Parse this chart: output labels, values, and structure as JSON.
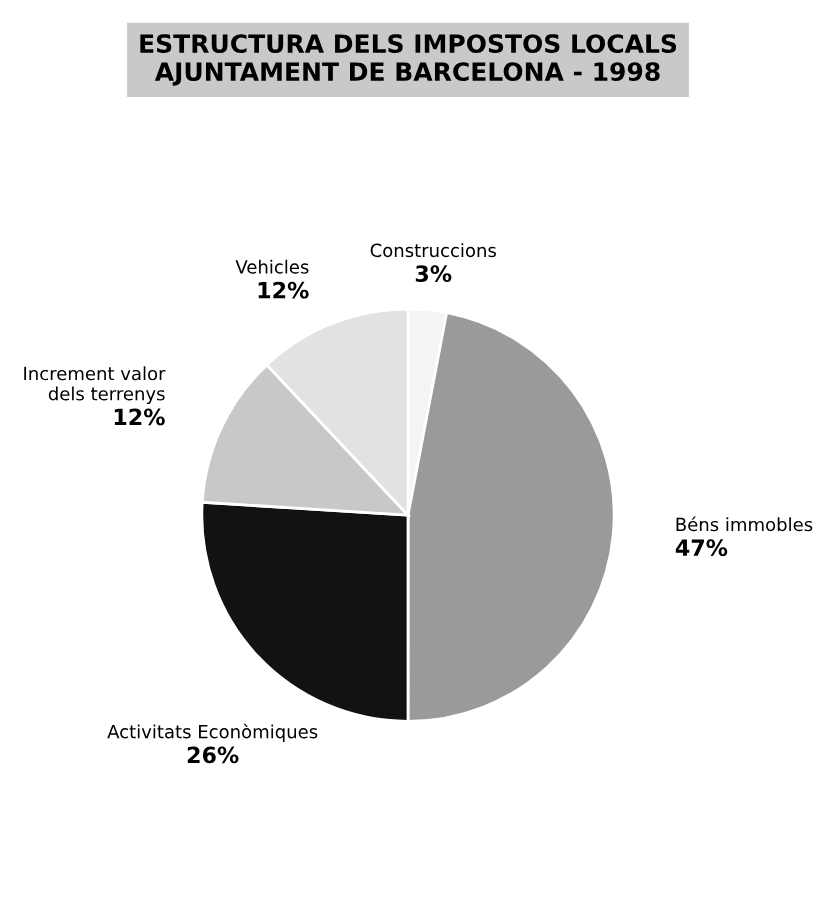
{
  "chart_data": {
    "type": "pie",
    "title": "ESTRUCTURA DELS IMPOSTOS LOCALS\nAJUNTAMENT DE BARCELONA - 1998",
    "categories": [
      "Construccions",
      "Béns immobles",
      "Activitats Econòmiques",
      "Increment valor\ndels terrenys",
      "Vehicles"
    ],
    "values": [
      3,
      47,
      26,
      12,
      12
    ],
    "value_labels": [
      "3%",
      "47%",
      "26%",
      "12%",
      "12%"
    ],
    "colors": [
      "#f4f4f4",
      "#9a9a9a",
      "#121212",
      "#c8c8c8",
      "#e2e2e2"
    ]
  }
}
